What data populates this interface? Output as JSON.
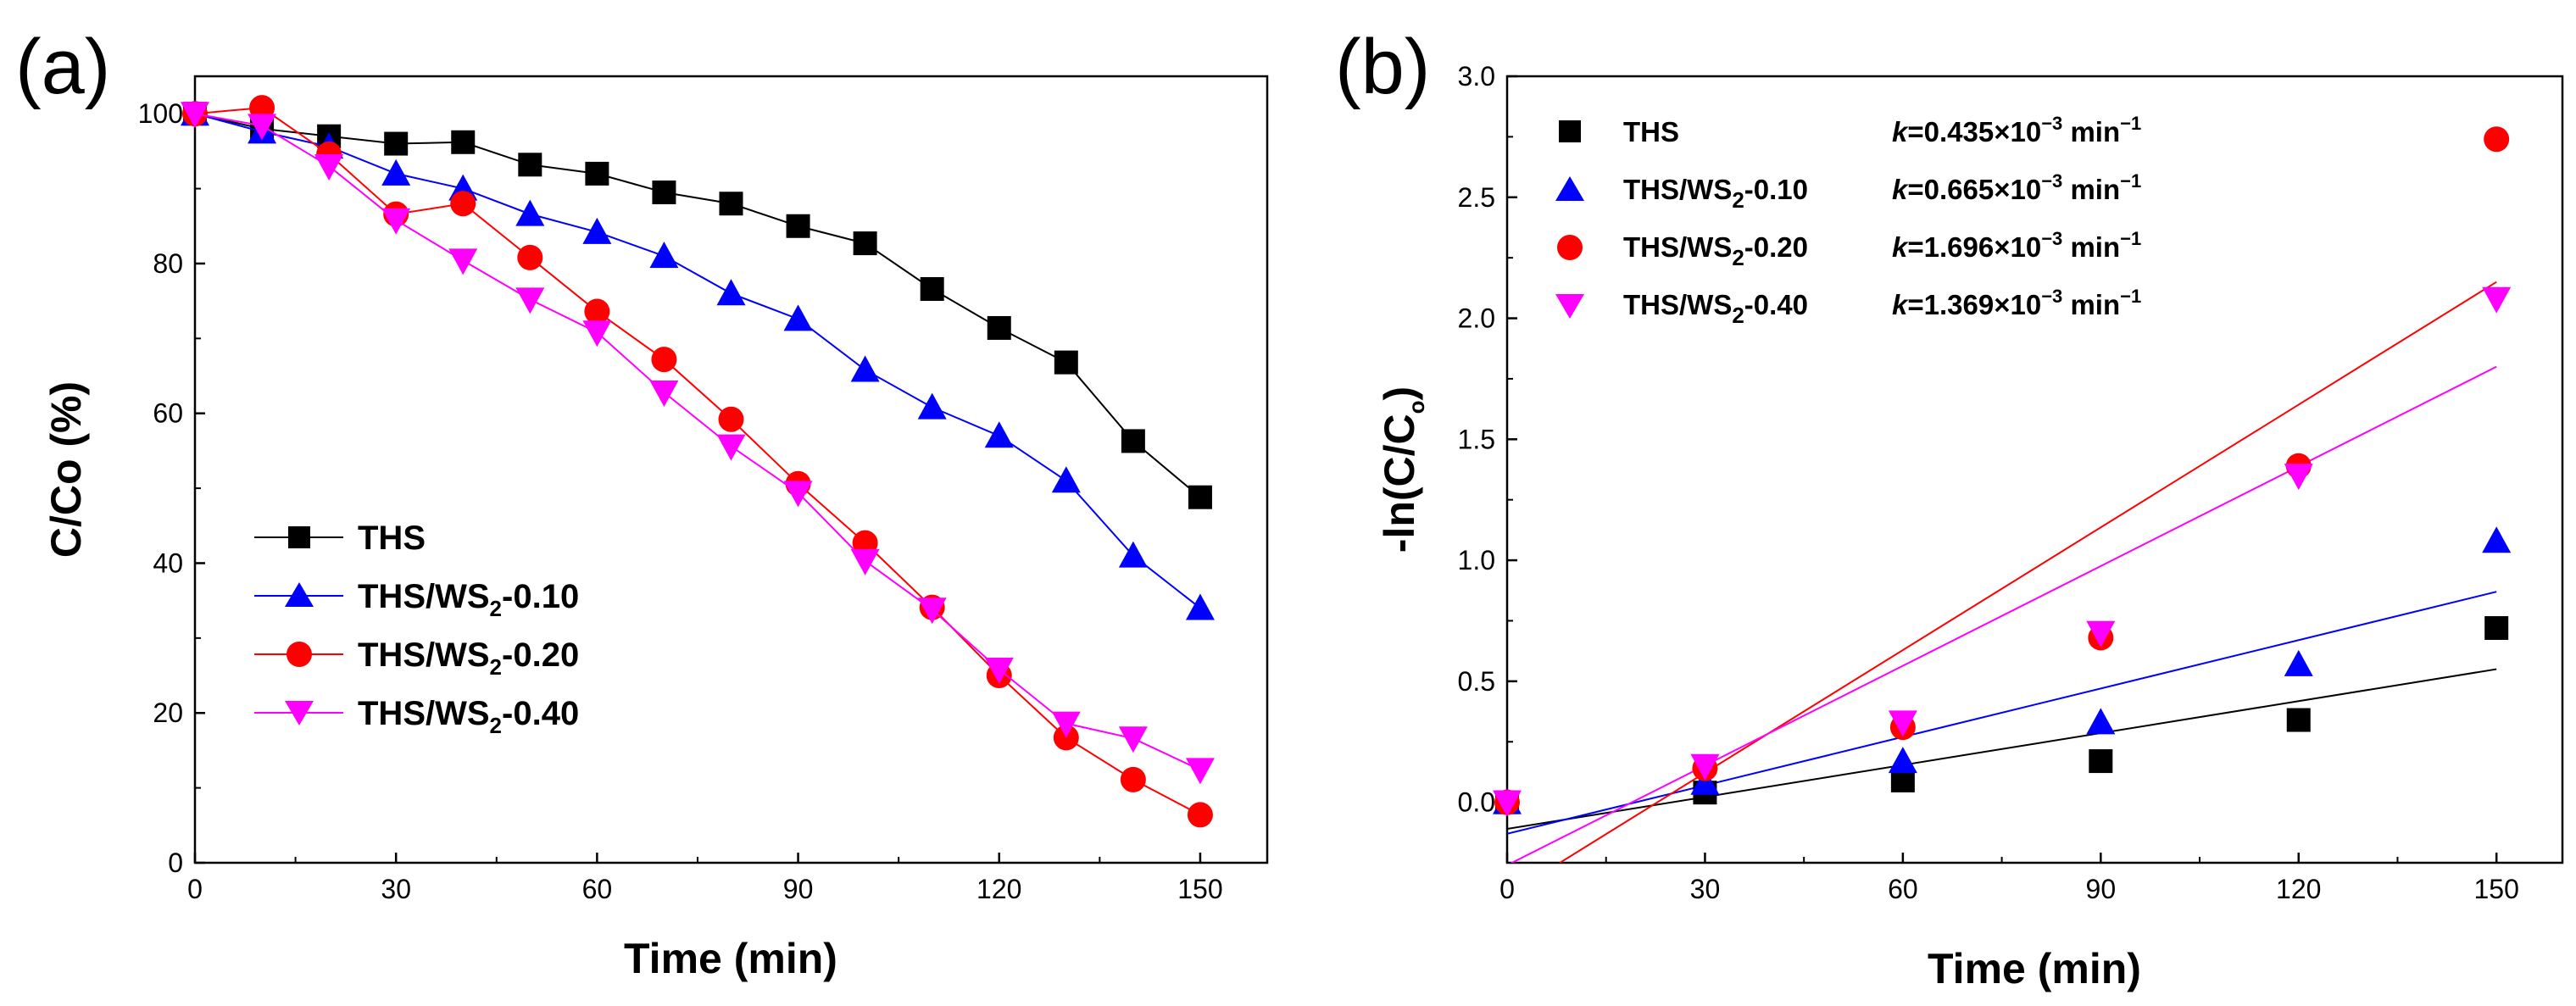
{
  "chart_data": [
    {
      "panel_label": "(a)",
      "type": "line",
      "xlabel": "Time (min)",
      "ylabel": "C/Co (%)",
      "xlim": [
        0,
        160
      ],
      "ylim": [
        0,
        105
      ],
      "xticks": [
        0,
        30,
        60,
        90,
        120,
        150
      ],
      "yticks": [
        0,
        20,
        40,
        60,
        80,
        100
      ],
      "legend_position": "bottom-left",
      "series": [
        {
          "name": "THS",
          "name_prefix": "THS",
          "name_sub": "",
          "name_suffix": "",
          "color": "#000000",
          "marker": "square",
          "x": [
            0,
            10,
            20,
            30,
            40,
            50,
            60,
            70,
            80,
            90,
            100,
            110,
            120,
            130,
            140,
            150
          ],
          "y": [
            100,
            98,
            97,
            96,
            96.2,
            93.2,
            92,
            89.5,
            88,
            85,
            82.7,
            76.6,
            71.4,
            66.8,
            56.3,
            48.8
          ]
        },
        {
          "name": "THS/WS2-0.10",
          "name_prefix": "THS/WS",
          "name_sub": "2",
          "name_suffix": "-0.10",
          "color": "#0000ff",
          "marker": "triangle-up",
          "x": [
            0,
            10,
            20,
            30,
            40,
            50,
            60,
            70,
            80,
            90,
            100,
            110,
            120,
            130,
            140,
            150
          ],
          "y": [
            100,
            97.6,
            95.6,
            92,
            90,
            86.6,
            84.2,
            81,
            76,
            72.6,
            65.8,
            60.8,
            57,
            51,
            41,
            34
          ]
        },
        {
          "name": "THS/WS2-0.20",
          "name_prefix": "THS/WS",
          "name_sub": "2",
          "name_suffix": "-0.20",
          "color": "#ff0000",
          "marker": "circle",
          "x": [
            0,
            10,
            20,
            30,
            40,
            50,
            60,
            70,
            80,
            90,
            100,
            110,
            120,
            130,
            140,
            150
          ],
          "y": [
            100,
            100.8,
            94.6,
            86.6,
            88,
            80.8,
            73.6,
            67.2,
            59.2,
            50.6,
            42.7,
            34.1,
            25,
            16.7,
            11.1,
            6.4
          ]
        },
        {
          "name": "THS/WS2-0.40",
          "name_prefix": "THS/WS",
          "name_sub": "2",
          "name_suffix": "-0.40",
          "color": "#ff00ff",
          "marker": "triangle-down",
          "x": [
            0,
            10,
            20,
            30,
            40,
            50,
            60,
            70,
            80,
            90,
            100,
            110,
            120,
            130,
            140,
            150
          ],
          "y": [
            100,
            98.4,
            93,
            85.8,
            80.4,
            75.2,
            70.8,
            62.8,
            55.6,
            49.4,
            40.3,
            33.8,
            25.8,
            18.6,
            16.6,
            12.4
          ]
        }
      ]
    },
    {
      "panel_label": "(b)",
      "type": "scatter",
      "xlabel": "Time (min)",
      "ylabel_prefix": "-ln(C/C",
      "ylabel_sub": "o",
      "ylabel_suffix": ")",
      "xlim": [
        0,
        160
      ],
      "ylim": [
        -0.25,
        3.0
      ],
      "xticks": [
        0,
        30,
        60,
        90,
        120,
        150
      ],
      "yticks": [
        0.0,
        0.5,
        1.0,
        1.5,
        2.0,
        2.5,
        3.0
      ],
      "ytick_labels": [
        "0.0",
        "0.5",
        "1.0",
        "1.5",
        "2.0",
        "2.5",
        "3.0"
      ],
      "legend_position": "top-left",
      "series": [
        {
          "name": "THS",
          "name_prefix": "THS",
          "name_sub": "",
          "name_suffix": "",
          "color": "#000000",
          "marker": "square",
          "k_label_k": "k",
          "k_label_value": "=0.435×10",
          "k_label_exp": "−3",
          "k_label_unit": " min",
          "k_label_unit_exp": "−1",
          "x": [
            0,
            30,
            60,
            90,
            120,
            150
          ],
          "y": [
            0.0,
            0.04,
            0.09,
            0.17,
            0.34,
            0.72
          ],
          "fit": {
            "x": [
              0,
              150
            ],
            "y": [
              -0.11,
              0.55
            ]
          }
        },
        {
          "name": "THS/WS2-0.10",
          "name_prefix": "THS/WS",
          "name_sub": "2",
          "name_suffix": "-0.10",
          "color": "#0000ff",
          "marker": "triangle-up",
          "k_label_k": "k",
          "k_label_value": "=0.665×10",
          "k_label_exp": "−3",
          "k_label_unit": " min",
          "k_label_unit_exp": "−1",
          "x": [
            0,
            30,
            60,
            90,
            120,
            150
          ],
          "y": [
            0.0,
            0.08,
            0.17,
            0.33,
            0.57,
            1.08
          ],
          "fit": {
            "x": [
              0,
              150
            ],
            "y": [
              -0.13,
              0.87
            ]
          }
        },
        {
          "name": "THS/WS2-0.20",
          "name_prefix": "THS/WS",
          "name_sub": "2",
          "name_suffix": "-0.20",
          "color": "#ff0000",
          "marker": "circle",
          "k_label_k": "k",
          "k_label_value": "=1.696×10",
          "k_label_exp": "−3",
          "k_label_unit": " min",
          "k_label_unit_exp": "−1",
          "x": [
            0,
            30,
            60,
            90,
            120,
            150
          ],
          "y": [
            0.0,
            0.14,
            0.31,
            0.68,
            1.39,
            2.74
          ],
          "fit": {
            "x": [
              8,
              150
            ],
            "y": [
              -0.25,
              2.15
            ]
          }
        },
        {
          "name": "THS/WS2-0.40",
          "name_prefix": "THS/WS",
          "name_sub": "2",
          "name_suffix": "-0.40",
          "color": "#ff00ff",
          "marker": "triangle-down",
          "k_label_k": "k",
          "k_label_value": "=1.369×10",
          "k_label_exp": "−3",
          "k_label_unit": " min",
          "k_label_unit_exp": "−1",
          "x": [
            0,
            30,
            60,
            90,
            120,
            150
          ],
          "y": [
            0.0,
            0.15,
            0.33,
            0.7,
            1.35,
            2.08
          ],
          "fit": {
            "x": [
              0,
              150
            ],
            "y": [
              -0.26,
              1.8
            ]
          }
        }
      ]
    }
  ]
}
